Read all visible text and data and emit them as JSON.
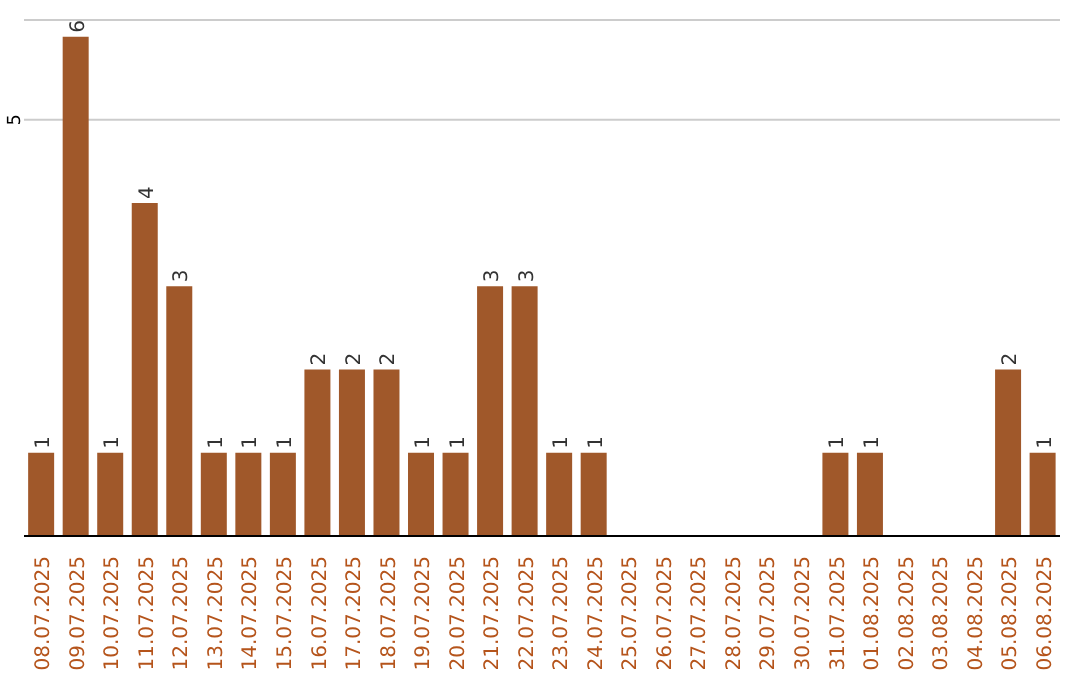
{
  "chart_data": {
    "type": "bar",
    "categories": [
      "08.07.2025",
      "09.07.2025",
      "10.07.2025",
      "11.07.2025",
      "12.07.2025",
      "13.07.2025",
      "14.07.2025",
      "15.07.2025",
      "16.07.2025",
      "17.07.2025",
      "18.07.2025",
      "19.07.2025",
      "20.07.2025",
      "21.07.2025",
      "22.07.2025",
      "23.07.2025",
      "24.07.2025",
      "25.07.2025",
      "26.07.2025",
      "27.07.2025",
      "28.07.2025",
      "29.07.2025",
      "30.07.2025",
      "31.07.2025",
      "01.08.2025",
      "02.08.2025",
      "03.08.2025",
      "04.08.2025",
      "05.08.2025",
      "06.08.2025"
    ],
    "values": [
      1,
      6,
      1,
      4,
      3,
      1,
      1,
      1,
      2,
      2,
      2,
      1,
      1,
      3,
      3,
      1,
      1,
      0,
      0,
      0,
      0,
      0,
      0,
      1,
      1,
      0,
      0,
      0,
      2,
      1
    ],
    "value_labels": [
      "1",
      "6",
      "1",
      "4",
      "3",
      "1",
      "1",
      "1",
      "2",
      "2",
      "2",
      "1",
      "1",
      "3",
      "3",
      "1",
      "1",
      null,
      null,
      null,
      null,
      null,
      null,
      "1",
      "1",
      null,
      null,
      null,
      "2",
      "1"
    ],
    "color": "#a0582a",
    "ylim": [
      0,
      6.2
    ],
    "yticks": [
      5
    ],
    "grid": "y"
  }
}
